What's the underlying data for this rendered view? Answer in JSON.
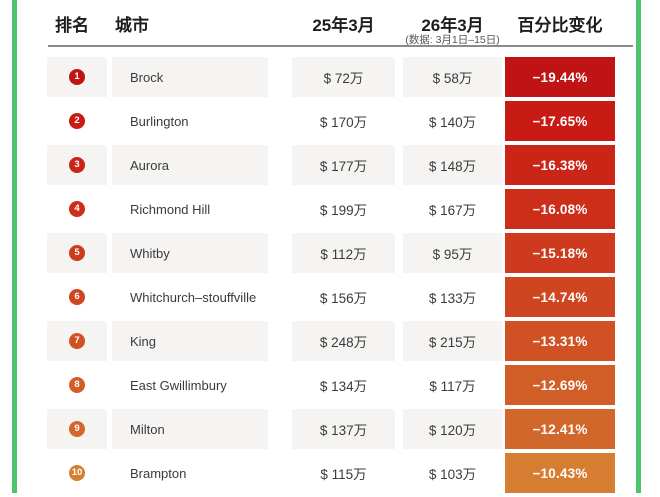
{
  "header": {
    "rank": "排名",
    "city": "城市",
    "mar25": "25年3月",
    "mar26": "26年3月",
    "mar26_note": "(数据: 3月1日–15日)",
    "pct_change": "百分比变化"
  },
  "colors": {
    "border_green": "#4dc46b",
    "alt_row_bg": "#f5f4f2",
    "divider_gray": "#8b8b8b"
  },
  "rows": [
    {
      "rank": "1",
      "city": "Brock",
      "mar25": "$ 72万",
      "mar26": "$ 58万",
      "pct": "−19.44%",
      "color": "#c01313"
    },
    {
      "rank": "2",
      "city": "Burlington",
      "mar25": "$ 170万",
      "mar26": "$ 140万",
      "pct": "−17.65%",
      "color": "#c71b13"
    },
    {
      "rank": "3",
      "city": "Aurora",
      "mar25": "$ 177万",
      "mar26": "$ 148万",
      "pct": "−16.38%",
      "color": "#ca2517"
    },
    {
      "rank": "4",
      "city": "Richmond Hill",
      "mar25": "$ 199万",
      "mar26": "$ 167万",
      "pct": "−16.08%",
      "color": "#cc2e19"
    },
    {
      "rank": "5",
      "city": "Whitby",
      "mar25": "$ 112万",
      "mar26": "$ 95万",
      "pct": "−15.18%",
      "color": "#cd3a1d"
    },
    {
      "rank": "6",
      "city": "Whitchurch–stouffville",
      "mar25": "$ 156万",
      "mar26": "$ 133万",
      "pct": "−14.74%",
      "color": "#cf4520"
    },
    {
      "rank": "7",
      "city": "King",
      "mar25": "$ 248万",
      "mar26": "$ 215万",
      "pct": "−13.31%",
      "color": "#d05224"
    },
    {
      "rank": "8",
      "city": "East Gwillimbury",
      "mar25": "$ 134万",
      "mar26": "$ 117万",
      "pct": "−12.69%",
      "color": "#d15d27"
    },
    {
      "rank": "9",
      "city": "Milton",
      "mar25": "$ 137万",
      "mar26": "$ 120万",
      "pct": "−12.41%",
      "color": "#d2672c"
    },
    {
      "rank": "10",
      "city": "Brampton",
      "mar25": "$ 115万",
      "mar26": "$ 103万",
      "pct": "−10.43%",
      "color": "#d57e31"
    }
  ],
  "chart_data": {
    "type": "table",
    "title": "",
    "columns": [
      "排名",
      "城市",
      "25年3月",
      "26年3月 (数据: 3月1日–15日)",
      "百分比变化"
    ],
    "rows": [
      [
        1,
        "Brock",
        "$ 72万",
        "$ 58万",
        "−19.44%"
      ],
      [
        2,
        "Burlington",
        "$ 170万",
        "$ 140万",
        "−17.65%"
      ],
      [
        3,
        "Aurora",
        "$ 177万",
        "$ 148万",
        "−16.38%"
      ],
      [
        4,
        "Richmond Hill",
        "$ 199万",
        "$ 167万",
        "−16.08%"
      ],
      [
        5,
        "Whitby",
        "$ 112万",
        "$ 95万",
        "−15.18%"
      ],
      [
        6,
        "Whitchurch–stouffville",
        "$ 156万",
        "$ 133万",
        "−14.74%"
      ],
      [
        7,
        "King",
        "$ 248万",
        "$ 215万",
        "−13.31%"
      ],
      [
        8,
        "East Gwillimbury",
        "$ 134万",
        "$ 117万",
        "−12.69%"
      ],
      [
        9,
        "Milton",
        "$ 137万",
        "$ 120万",
        "−12.41%"
      ],
      [
        10,
        "Brampton",
        "$ 115万",
        "$ 103万",
        "−10.43%"
      ]
    ],
    "value_note": "percent change color ramp from dark red (largest decline) to orange (smallest decline)"
  }
}
